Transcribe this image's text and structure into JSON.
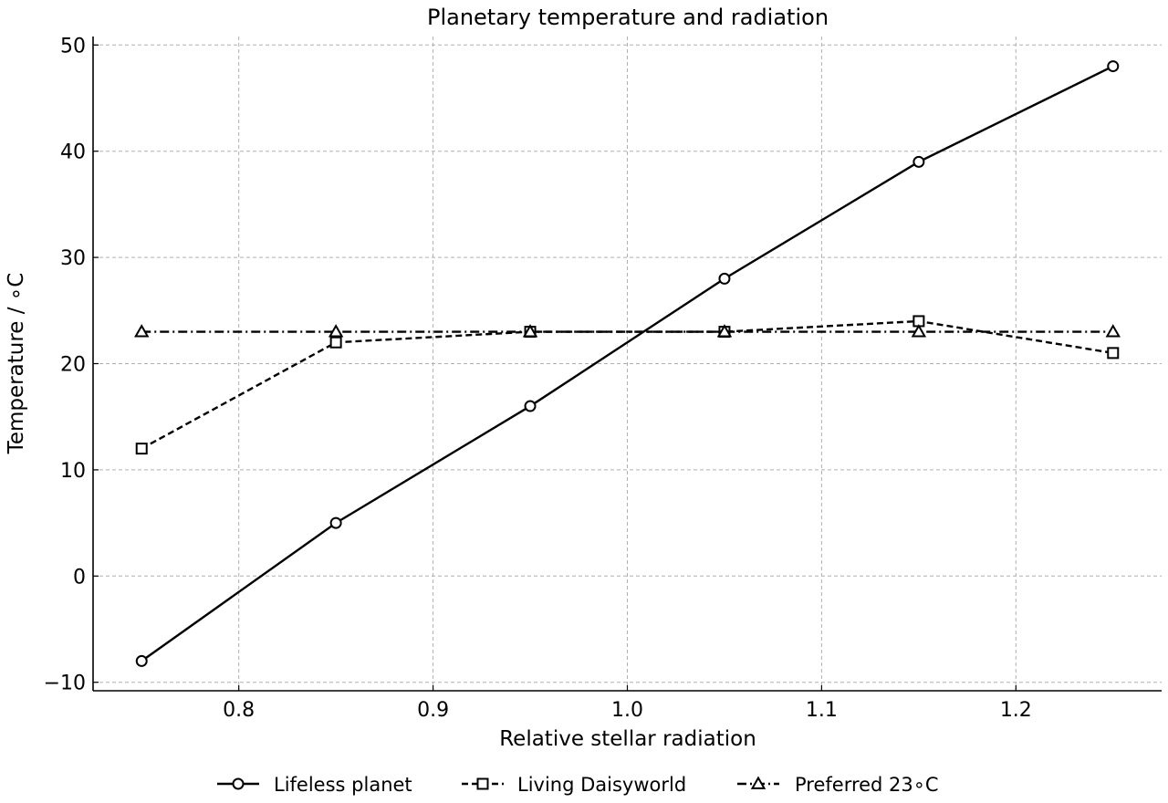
{
  "chart_data": {
    "type": "line",
    "title": "Planetary temperature and radiation",
    "xlabel": "Relative stellar radiation",
    "ylabel": "Temperature / ∘C",
    "x": [
      0.75,
      0.85,
      0.95,
      1.05,
      1.15,
      1.25
    ],
    "xlim": [
      0.725,
      1.275
    ],
    "ylim": [
      -10.8,
      50.8
    ],
    "xticks": [
      0.8,
      0.9,
      1.0,
      1.1,
      1.2
    ],
    "xtick_labels": [
      "0.8",
      "0.9",
      "1.0",
      "1.1",
      "1.2"
    ],
    "yticks": [
      -10,
      0,
      10,
      20,
      30,
      40,
      50
    ],
    "ytick_labels": [
      "−10",
      "0",
      "10",
      "20",
      "30",
      "40",
      "50"
    ],
    "grid": true,
    "legend_position": "bottom",
    "series": [
      {
        "name": "Lifeless planet",
        "values": [
          -8,
          5,
          16,
          28,
          39,
          48
        ],
        "marker": "circle",
        "dash": "solid",
        "color": "#000000"
      },
      {
        "name": "Living Daisyworld",
        "values": [
          12,
          22,
          23,
          23,
          24,
          21
        ],
        "marker": "square",
        "dash": "dashed",
        "color": "#000000"
      },
      {
        "name": "Preferred 23∘C",
        "values": [
          23,
          23,
          23,
          23,
          23,
          23
        ],
        "marker": "triangle",
        "dash": "dashdot",
        "color": "#000000"
      }
    ]
  }
}
